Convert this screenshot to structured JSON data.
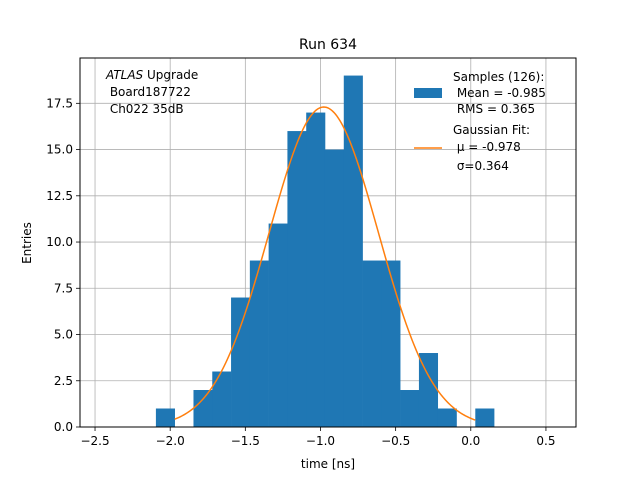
{
  "chart_data": {
    "type": "bar",
    "title": "Run 634",
    "xlabel": "time [ns]",
    "ylabel": "Entries",
    "xlim": [
      -2.6,
      0.7
    ],
    "ylim": [
      0,
      19.95
    ],
    "grid": true,
    "x_ticks": [
      -2.5,
      -2.0,
      -1.5,
      -1.0,
      -0.5,
      0.0,
      0.5
    ],
    "x_tick_labels": [
      "−2.5",
      "−2.0",
      "−1.5",
      "−1.0",
      "−0.5",
      "0.0",
      "0.5"
    ],
    "y_ticks": [
      0,
      2.5,
      5,
      7.5,
      10,
      12.5,
      15,
      17.5
    ],
    "y_tick_labels": [
      "0.0",
      "2.5",
      "5.0",
      "7.5",
      "10.0",
      "12.5",
      "15.0",
      "17.5"
    ],
    "bin_edges": [
      -2.095,
      -1.845,
      -1.595,
      -1.345,
      -1.095,
      -0.845,
      -0.595,
      -0.345,
      -0.095,
      0.155
    ],
    "histogram": {
      "name": "Samples (126):",
      "color": "#1f77b4",
      "bin_edges": [
        -2.095,
        -1.97,
        -1.845,
        -1.72,
        -1.595,
        -1.47,
        -1.345,
        -1.22,
        -1.095,
        -0.97,
        -0.845,
        -0.72,
        -0.595,
        -0.47,
        -0.345,
        -0.22,
        -0.095,
        0.03,
        0.155
      ],
      "counts": [
        1,
        0,
        2,
        3,
        7,
        9,
        11,
        16,
        17,
        15,
        19,
        9,
        9,
        2,
        4,
        1,
        0,
        1
      ]
    },
    "fit": {
      "name": "Gaussian Fit:",
      "color": "#ff7f0e",
      "mu": -0.978,
      "sigma": 0.364,
      "amplitude": 17.3,
      "x_range": [
        -1.97,
        0.03
      ]
    },
    "legend_placement": "top-right",
    "legend": {
      "samples_lines": [
        "Samples (126):",
        " Mean = -0.985",
        " RMS = 0.365"
      ],
      "fit_lines": [
        "Gaussian Fit:",
        " μ = -0.978",
        " σ=0.364"
      ]
    },
    "annotation": {
      "italic": "ATLAS",
      "first_line_rest": " Upgrade",
      "lines": [
        " Board187722",
        " Ch022 35dB"
      ]
    }
  }
}
